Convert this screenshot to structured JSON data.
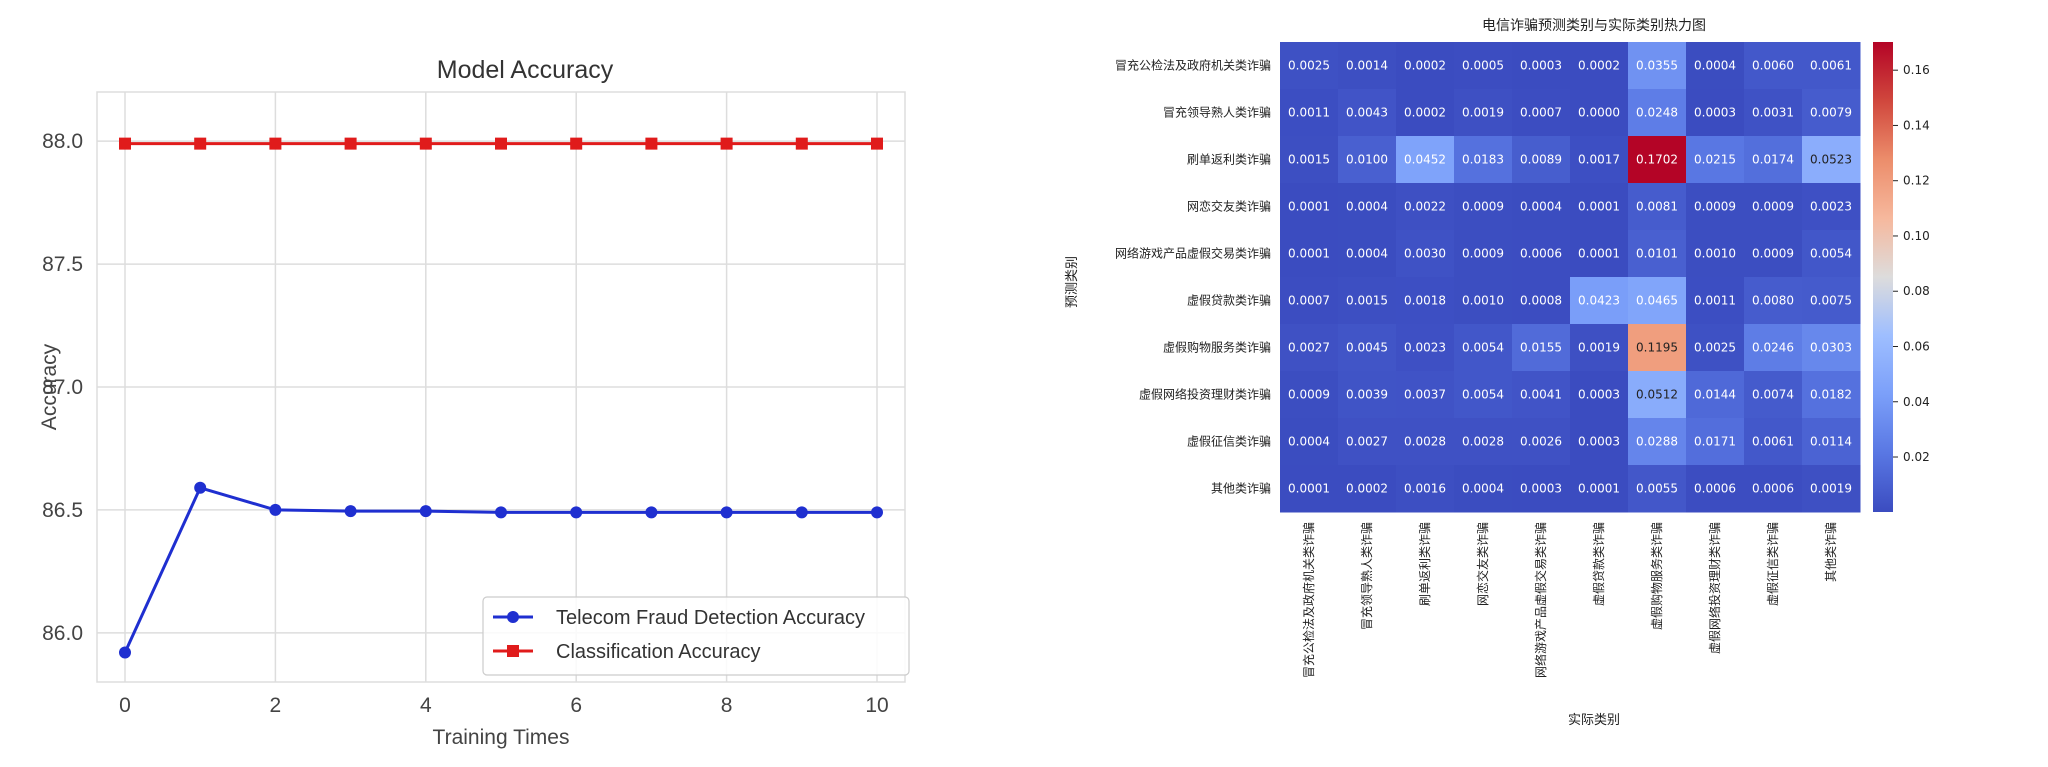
{
  "chart_data": [
    {
      "type": "line",
      "title": "Model Accuracy",
      "xlabel": "Training Times",
      "ylabel": "Accuracy",
      "xlim": [
        0,
        10
      ],
      "ylim": [
        85.8,
        88.2
      ],
      "x_ticks": [
        0,
        2,
        4,
        6,
        8,
        10
      ],
      "y_ticks": [
        "86.0",
        "86.5",
        "87.0",
        "87.5",
        "88.0"
      ],
      "grid": true,
      "legend_position": "lower-right",
      "x": [
        0,
        1,
        2,
        3,
        4,
        5,
        6,
        7,
        8,
        9,
        10
      ],
      "series": [
        {
          "name": "Telecom Fraud Detection Accuracy",
          "color": "#1f2fd0",
          "marker": "circle",
          "values": [
            85.92,
            86.59,
            86.5,
            86.495,
            86.495,
            86.49,
            86.49,
            86.49,
            86.49,
            86.49,
            86.49
          ]
        },
        {
          "name": "Classification Accuracy",
          "color": "#e01b1b",
          "marker": "square",
          "values": [
            87.99,
            87.99,
            87.99,
            87.99,
            87.99,
            87.99,
            87.99,
            87.99,
            87.99,
            87.99,
            87.99
          ]
        }
      ]
    },
    {
      "type": "heatmap",
      "title": "电信诈骗预测类别与实际类别热力图",
      "xlabel": "实际类别",
      "ylabel": "预测类别",
      "colormap": "coolwarm",
      "color_range": [
        0.0001,
        0.1702
      ],
      "colorbar_ticks": [
        0.02,
        0.04,
        0.06,
        0.08,
        0.1,
        0.12,
        0.14,
        0.16
      ],
      "categories": [
        "冒充公检法及政府机关类诈骗",
        "冒充领导熟人类诈骗",
        "刷单返利类诈骗",
        "网恋交友类诈骗",
        "网络游戏产品虚假交易类诈骗",
        "虚假贷款类诈骗",
        "虚假购物服务类诈骗",
        "虚假网络投资理财类诈骗",
        "虚假征信类诈骗",
        "其他类诈骗"
      ],
      "values": [
        [
          0.0025,
          0.0014,
          0.0002,
          0.0005,
          0.0003,
          0.0002,
          0.0355,
          0.0004,
          0.006,
          0.0061
        ],
        [
          0.0011,
          0.0043,
          0.0002,
          0.0019,
          0.0007,
          0.0,
          0.0248,
          0.0003,
          0.0031,
          0.0079
        ],
        [
          0.0015,
          0.01,
          0.0452,
          0.0183,
          0.0089,
          0.0017,
          0.1702,
          0.0215,
          0.0174,
          0.0523
        ],
        [
          0.0001,
          0.0004,
          0.0022,
          0.0009,
          0.0004,
          0.0001,
          0.0081,
          0.0009,
          0.0009,
          0.0023
        ],
        [
          0.0001,
          0.0004,
          0.003,
          0.0009,
          0.0006,
          0.0001,
          0.0101,
          0.001,
          0.0009,
          0.0054
        ],
        [
          0.0007,
          0.0015,
          0.0018,
          0.001,
          0.0008,
          0.0423,
          0.0465,
          0.0011,
          0.008,
          0.0075
        ],
        [
          0.0027,
          0.0045,
          0.0023,
          0.0054,
          0.0155,
          0.0019,
          0.1195,
          0.0025,
          0.0246,
          0.0303
        ],
        [
          0.0009,
          0.0039,
          0.0037,
          0.0054,
          0.0041,
          0.0003,
          0.0512,
          0.0144,
          0.0074,
          0.0182
        ],
        [
          0.0004,
          0.0027,
          0.0028,
          0.0028,
          0.0026,
          0.0003,
          0.0288,
          0.0171,
          0.0061,
          0.0114
        ],
        [
          0.0001,
          0.0002,
          0.0016,
          0.0004,
          0.0003,
          0.0001,
          0.0055,
          0.0006,
          0.0006,
          0.0019
        ]
      ]
    }
  ]
}
